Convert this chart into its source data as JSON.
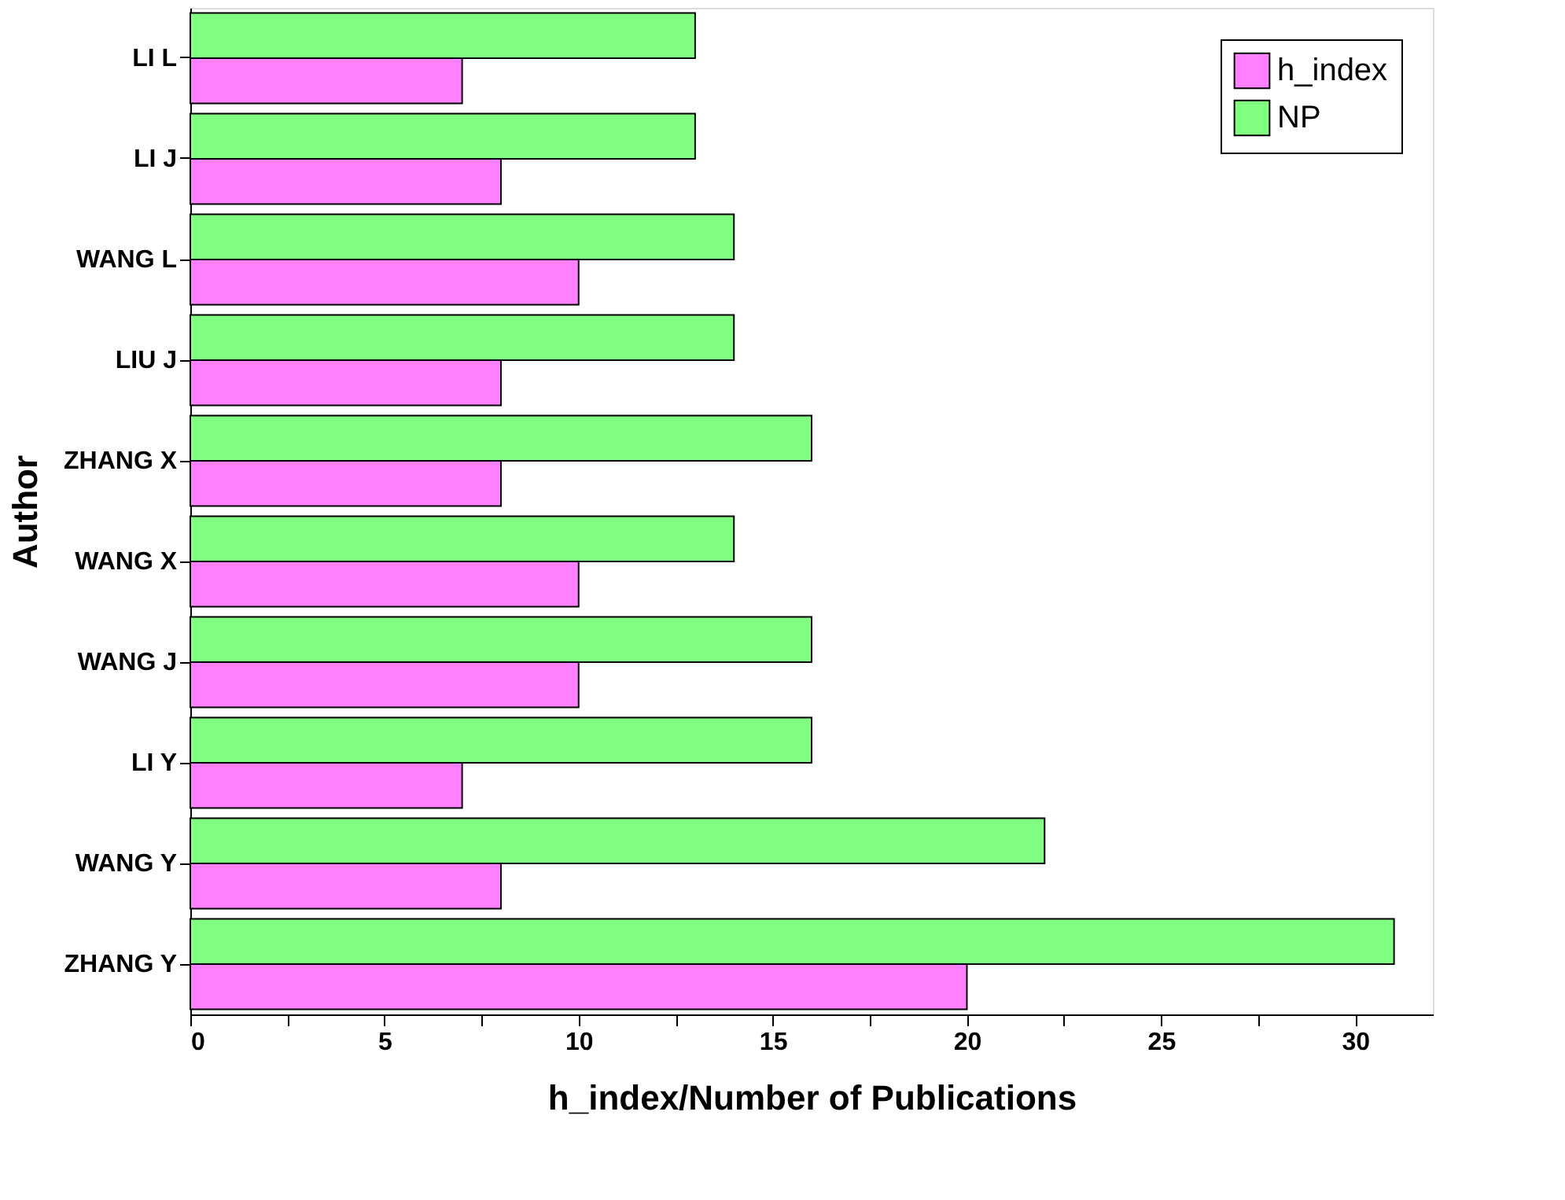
{
  "chart_data": {
    "type": "bar",
    "orientation": "horizontal",
    "xlabel": "h_index/Number of Publications",
    "ylabel": "Author",
    "categories": [
      "LI L",
      "LI J",
      "WANG L",
      "LIU J",
      "ZHANG X",
      "WANG X",
      "WANG J",
      "LI Y",
      "WANG Y",
      "ZHANG Y"
    ],
    "series": [
      {
        "name": "h_index",
        "color": "#ff80ff",
        "values": [
          7,
          8,
          10,
          8,
          8,
          10,
          10,
          7,
          8,
          20
        ]
      },
      {
        "name": "NP",
        "color": "#80ff80",
        "values": [
          13,
          13,
          14,
          14,
          16,
          14,
          16,
          16,
          22,
          31
        ]
      }
    ],
    "xlim": [
      0,
      32
    ],
    "xticks": [
      0,
      {
        "value": 2.5,
        "label": null
      },
      5,
      {
        "value": 7.5,
        "label": null
      },
      10,
      {
        "value": 12.5,
        "label": null
      },
      15,
      {
        "value": 17.5,
        "label": null
      },
      20,
      {
        "value": 22.5,
        "label": null
      },
      25,
      {
        "value": 27.5,
        "label": null
      },
      30
    ],
    "legend": "top right",
    "grid": false
  }
}
